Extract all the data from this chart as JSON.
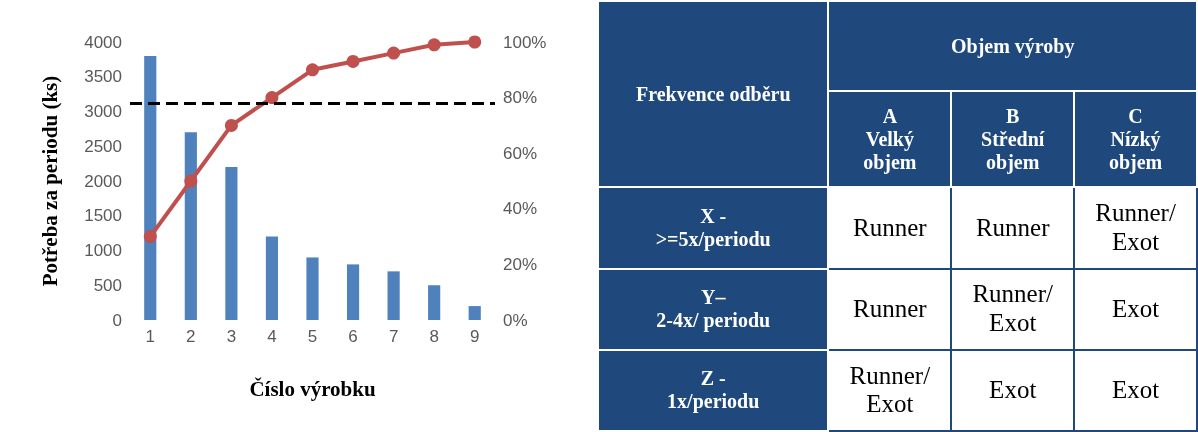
{
  "chart_data": [
    {
      "type": "bar",
      "categories": [
        "1",
        "2",
        "3",
        "4",
        "5",
        "6",
        "7",
        "8",
        "9"
      ],
      "series": [
        {
          "type": "bar",
          "color": "#4f81bd",
          "values": [
            3800,
            2700,
            2200,
            1200,
            900,
            800,
            700,
            500,
            200
          ]
        },
        {
          "type": "line",
          "axis": "y2",
          "color": "#c0504d",
          "marker": "circle",
          "line_style": "solid",
          "values": [
            30,
            50,
            70,
            80,
            90,
            93,
            96,
            99,
            100
          ]
        }
      ],
      "ylabel": "Potřeba za periodu (ks)",
      "xlabel": "Číslo výrobku",
      "ylim": [
        0,
        4000
      ],
      "yticks": [
        0,
        500,
        1000,
        1500,
        2000,
        2500,
        3000,
        3500,
        4000
      ],
      "y2lim": [
        0,
        100
      ],
      "y2ticks": [
        {
          "value": 0,
          "label": "0%"
        },
        {
          "value": 20,
          "label": "20%"
        },
        {
          "value": 40,
          "label": "40%"
        },
        {
          "value": 60,
          "label": "60%"
        },
        {
          "value": 80,
          "label": "80%"
        },
        {
          "value": 100,
          "label": "100%"
        }
      ],
      "ref_lines": [
        {
          "axis": "y2",
          "value": 78,
          "color": "#000000",
          "line_style": "dashed"
        }
      ],
      "grid": false
    },
    {
      "type": "other",
      "title": "Objem výroby",
      "ylabel": "Frekvence odběru",
      "categories": [
        "A\nVelký\nobjem",
        "B\nStřední\nobjem",
        "C\nNízký\nobjem"
      ],
      "y_categories": [
        "X -\n>=5x/periodu",
        "Y–\n2-4x/ periodu",
        "Z -\n1x/periodu"
      ],
      "cell_labels": [
        [
          "Runner",
          "Runner",
          "Runner/\nExot"
        ],
        [
          "Runner",
          "Runner/\nExot",
          "Exot"
        ],
        [
          "Runner/\nExot",
          "Exot",
          "Exot"
        ]
      ]
    }
  ]
}
